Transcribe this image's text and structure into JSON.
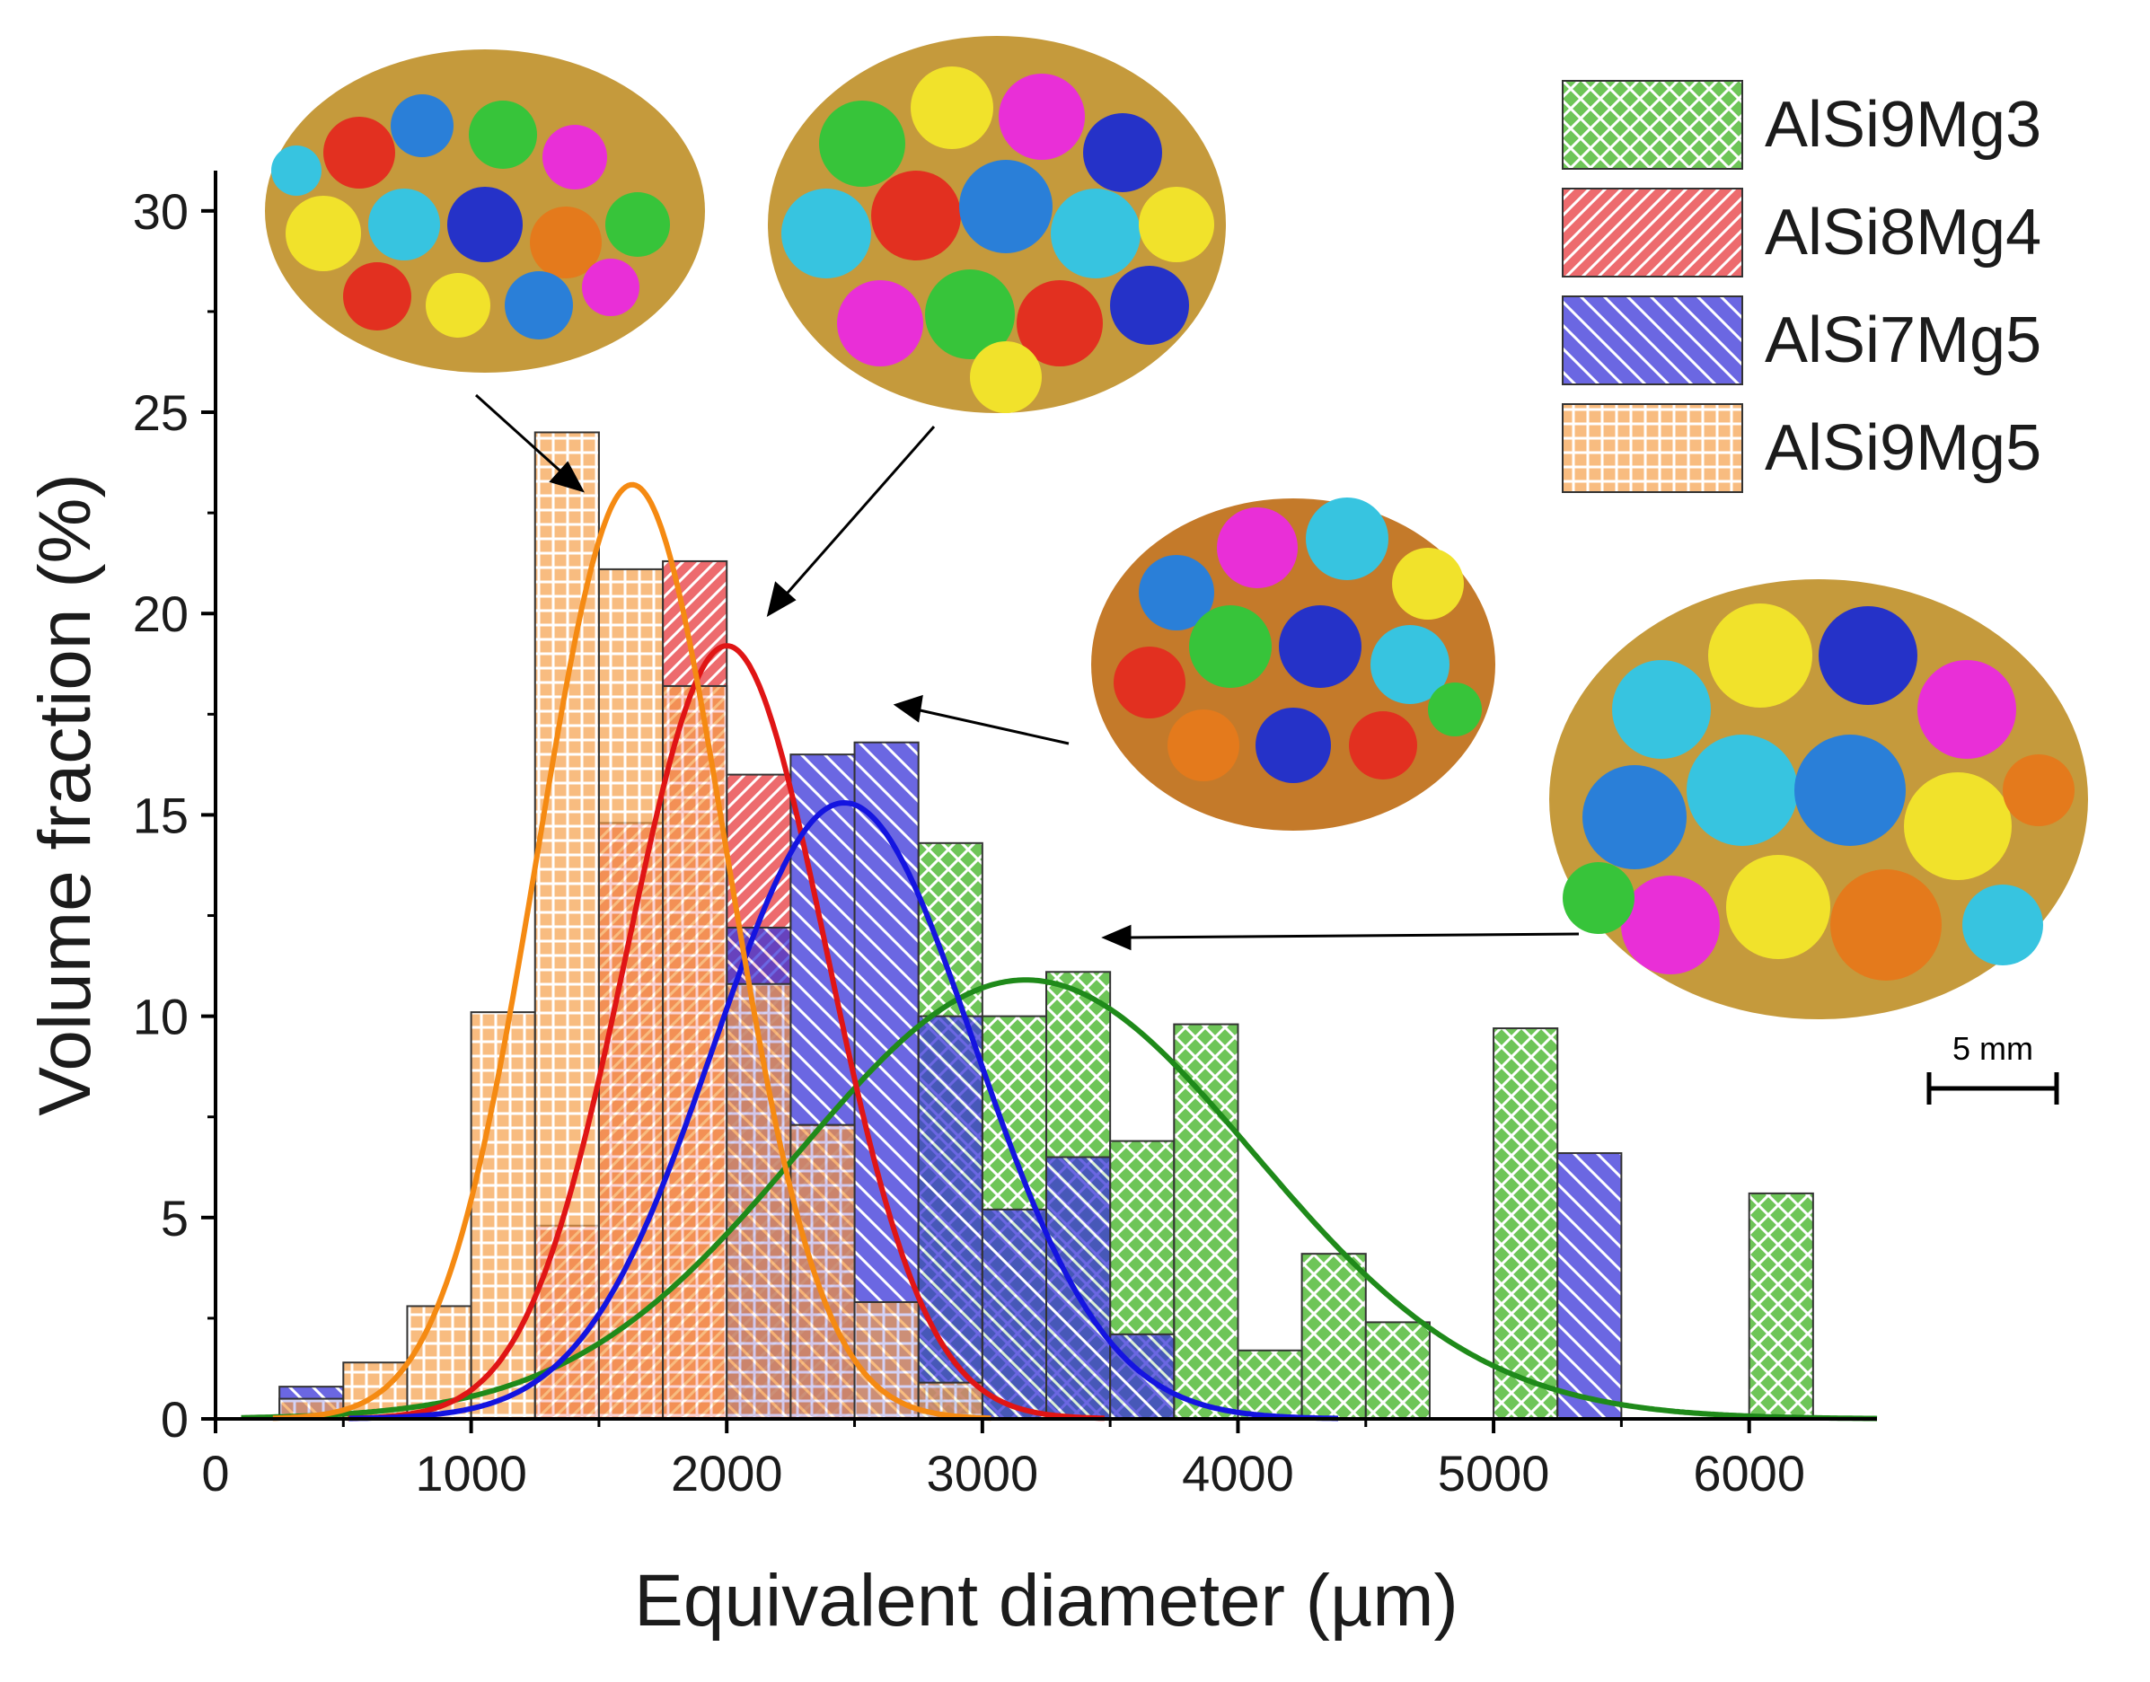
{
  "chart_data": {
    "type": "bar",
    "title": "",
    "xlabel": "Equivalent diameter (µm)",
    "ylabel": "Volume fraction (%)",
    "xlim": [
      0,
      6500
    ],
    "ylim": [
      0,
      31
    ],
    "xticks": [
      0,
      1000,
      2000,
      3000,
      4000,
      5000,
      6000
    ],
    "yticks": [
      0,
      5,
      10,
      15,
      20,
      25,
      30
    ],
    "bin_width": 250,
    "bin_centers": [
      375,
      625,
      875,
      1125,
      1375,
      1625,
      1875,
      2125,
      2375,
      2625,
      2875,
      3125,
      3375,
      3625,
      3875,
      4125,
      4375,
      4625,
      4875,
      5125,
      5375,
      5625,
      5875,
      6125
    ],
    "series": [
      {
        "name": "AlSi9Mg3",
        "color": "#55bb3b",
        "pattern": "crosshatch",
        "values": [
          0,
          0,
          0,
          0,
          0,
          0,
          0,
          0,
          0,
          0,
          14.3,
          10.0,
          11.1,
          6.9,
          9.8,
          1.7,
          4.1,
          2.4,
          0,
          9.7,
          0,
          0,
          0,
          5.6
        ],
        "fit": {
          "mean": 3170,
          "sigma": 890,
          "peak": 10.9
        }
      },
      {
        "name": "AlSi8Mg4",
        "color": "#e8464a",
        "pattern": "diagonal",
        "values": [
          0,
          0,
          0,
          0,
          4.8,
          14.8,
          21.3,
          16.0,
          7.3,
          0,
          0,
          0,
          0,
          0,
          0,
          0,
          0,
          0,
          0,
          0,
          0,
          0,
          0,
          0
        ],
        "fit": {
          "mean": 2000,
          "sigma": 390,
          "peak": 19.2
        }
      },
      {
        "name": "AlSi7Mg5",
        "color": "#3a34d8",
        "pattern": "diagonal",
        "values": [
          0.8,
          0,
          0,
          0,
          0,
          0,
          0,
          12.2,
          16.5,
          16.8,
          10.0,
          5.2,
          6.5,
          2.1,
          0,
          0,
          0,
          0,
          0,
          0,
          6.6,
          0,
          0,
          0
        ],
        "fit": {
          "mean": 2460,
          "sigma": 510,
          "peak": 15.3
        }
      },
      {
        "name": "AlSi9Mg5",
        "color": "#f5a04a",
        "pattern": "grid",
        "values": [
          0.5,
          1.4,
          2.8,
          10.1,
          24.5,
          21.1,
          18.2,
          10.8,
          7.3,
          2.9,
          0.9,
          0,
          0,
          0,
          0,
          0,
          0,
          0,
          0,
          0,
          0,
          0,
          0,
          0
        ],
        "fit": {
          "mean": 1630,
          "sigma": 370,
          "peak": 23.2
        }
      }
    ],
    "annotations": {
      "scale_bar": "5 mm"
    }
  }
}
